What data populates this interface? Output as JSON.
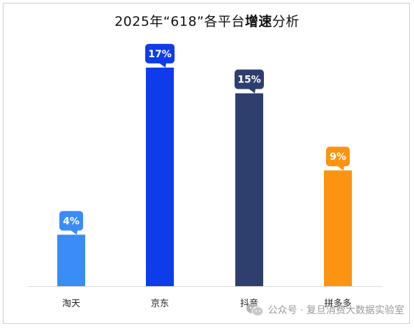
{
  "chart_data": {
    "type": "bar",
    "title_parts": {
      "prefix": "2025年“618”各平台",
      "bold": "增速",
      "suffix": "分析"
    },
    "categories": [
      "淘天",
      "京东",
      "抖音",
      "拼多多"
    ],
    "values": [
      4,
      17,
      15,
      9
    ],
    "data_labels": [
      "4%",
      "17%",
      "15%",
      "9%"
    ],
    "colors": [
      "#3a8cf6",
      "#0f3ceb",
      "#2e3f6e",
      "#fc9411"
    ],
    "ylim": [
      0,
      19
    ],
    "grid": false,
    "legend": "none"
  },
  "watermark": {
    "icon": "wechat-icon",
    "text": "公众号 · 复旦消费大数据实验室"
  }
}
